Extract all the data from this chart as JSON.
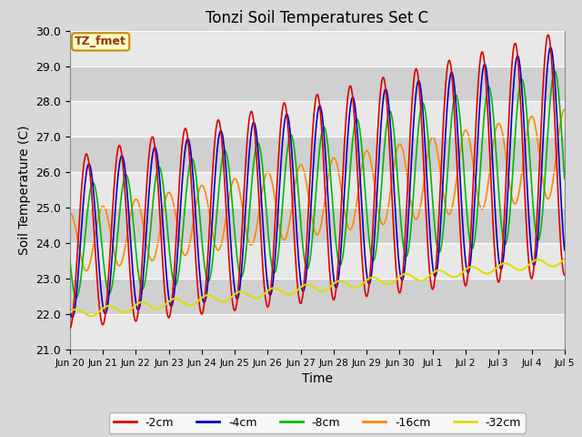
{
  "title": "Tonzi Soil Temperatures Set C",
  "xlabel": "Time",
  "ylabel": "Soil Temperature (C)",
  "ylim": [
    21.0,
    30.0
  ],
  "yticks": [
    21.0,
    22.0,
    23.0,
    24.0,
    25.0,
    26.0,
    27.0,
    28.0,
    29.0,
    30.0
  ],
  "annotation_text": "TZ_fmet",
  "annotation_color": "#cc8800",
  "annotation_bg": "#ffffcc",
  "annotation_text_color": "#993300",
  "line_colors": {
    "-2cm": "#dd0000",
    "-4cm": "#0000cc",
    "-8cm": "#00bb00",
    "-16cm": "#ff8800",
    "-32cm": "#dddd00"
  },
  "legend_labels": [
    "-2cm",
    "-4cm",
    "-8cm",
    "-16cm",
    "-32cm"
  ],
  "bg_color": "#d8d8d8",
  "plot_bg": "#d8d8d8",
  "grid_color": "#bbbbbb",
  "xticklabels": [
    "Jun 20",
    "Jun 21",
    "Jun 22",
    "Jun 23",
    "Jun 24",
    "Jun 25",
    "Jun 26",
    "Jun 27",
    "Jun 28",
    "Jun 29",
    "Jun 30",
    "Jul 1",
    "Jul 2",
    "Jul 3",
    "Jul 4",
    "Jul 5"
  ],
  "n_points": 1500
}
